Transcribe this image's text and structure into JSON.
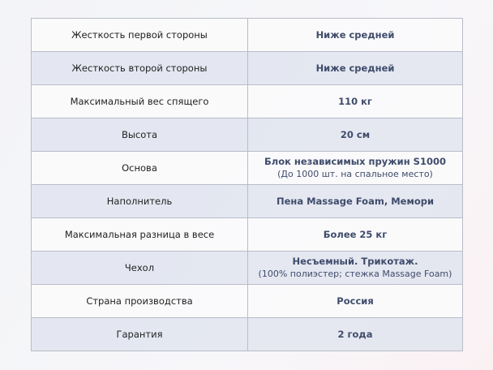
{
  "rows": [
    {
      "label": "Жесткость первой стороны",
      "value": "Ниже средней",
      "note": ""
    },
    {
      "label": "Жесткость второй стороны",
      "value": "Ниже средней",
      "note": ""
    },
    {
      "label": "Максимальный вес спящего",
      "value": "110 кг",
      "note": ""
    },
    {
      "label": "Высота",
      "value": "20 см",
      "note": ""
    },
    {
      "label": "Основа",
      "value": "Блок независимых пружин S1000",
      "note": "(До 1000 шт. на спальное место)"
    },
    {
      "label": "Наполнитель",
      "value": "Пена Massage Foam, Мемори",
      "note": ""
    },
    {
      "label": "Максимальная разница в весе",
      "value": "Более 25 кг",
      "note": ""
    },
    {
      "label": "Чехол",
      "value": "Несъемный. Трикотаж.",
      "note": "(100% полиэстер; стежка Massage Foam)"
    },
    {
      "label": "Страна производства",
      "value": "Россия",
      "note": ""
    },
    {
      "label": "Гарантия",
      "value": "2 года",
      "note": ""
    }
  ]
}
